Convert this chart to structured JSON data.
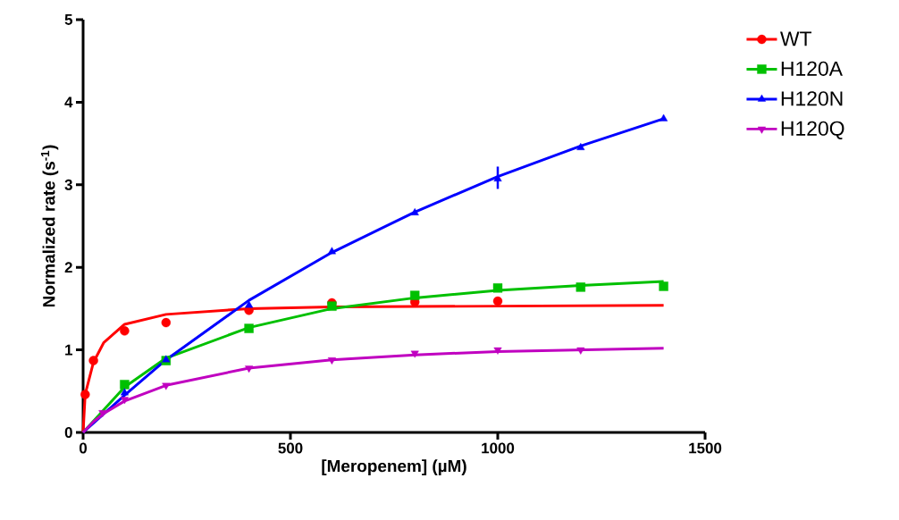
{
  "chart_data": {
    "type": "scatter",
    "xlabel": "[Meropenem] (µM)",
    "ylabel": "Normalized rate (s$^{-1}$)",
    "xlim": [
      0,
      1500
    ],
    "ylim": [
      0,
      5
    ],
    "xticks": [
      0,
      500,
      1000,
      1500
    ],
    "yticks": [
      0,
      1,
      2,
      3,
      4,
      5
    ],
    "grid": false,
    "legend": "right",
    "series": [
      {
        "name": "WT",
        "color": "#ff0000",
        "marker": "circle",
        "x": [
          5,
          25,
          100,
          200,
          400,
          600,
          800,
          1000
        ],
        "values": [
          0.46,
          0.87,
          1.23,
          1.33,
          1.48,
          1.57,
          1.58,
          1.59
        ]
      },
      {
        "name": "H120A",
        "color": "#00c000",
        "marker": "square",
        "x": [
          100,
          200,
          400,
          600,
          800,
          1000,
          1200,
          1400
        ],
        "values": [
          0.58,
          0.87,
          1.26,
          1.53,
          1.66,
          1.75,
          1.76,
          1.77
        ]
      },
      {
        "name": "H120N",
        "color": "#0000ff",
        "marker": "triangle",
        "x": [
          100,
          200,
          400,
          600,
          800,
          1000,
          1200,
          1400
        ],
        "values": [
          0.48,
          0.88,
          1.54,
          2.19,
          2.66,
          3.07,
          3.45,
          3.8
        ],
        "errors": [
          null,
          null,
          null,
          null,
          null,
          [
            2.95,
            3.22
          ],
          null,
          null
        ]
      },
      {
        "name": "H120Q",
        "color": "#c000c0",
        "marker": "triangle-down",
        "x": [
          47,
          100,
          200,
          400,
          600,
          800,
          1000,
          1200
        ],
        "values": [
          0.24,
          0.4,
          0.57,
          0.78,
          0.88,
          0.96,
          1.0,
          1.0
        ]
      },
      {
        "type": "line",
        "color": "#ff0000",
        "marker": "none",
        "x": [
          0,
          5,
          25,
          50,
          100,
          200,
          400,
          600,
          1000,
          1400
        ],
        "values": [
          0,
          0.46,
          0.85,
          1.09,
          1.31,
          1.43,
          1.5,
          1.52,
          1.53,
          1.54
        ]
      },
      {
        "type": "line",
        "color": "#00c000",
        "marker": "none",
        "x": [
          0,
          100,
          200,
          400,
          600,
          800,
          1000,
          1200,
          1400
        ],
        "values": [
          0,
          0.55,
          0.9,
          1.27,
          1.5,
          1.63,
          1.72,
          1.78,
          1.83
        ]
      },
      {
        "type": "line",
        "color": "#0000ff",
        "marker": "none",
        "x": [
          0,
          100,
          200,
          400,
          600,
          800,
          1000,
          1200,
          1400
        ],
        "values": [
          0,
          0.45,
          0.88,
          1.6,
          2.18,
          2.67,
          3.1,
          3.47,
          3.8
        ]
      },
      {
        "type": "line",
        "color": "#c000c0",
        "marker": "none",
        "x": [
          0,
          25,
          50,
          100,
          200,
          400,
          600,
          800,
          1000,
          1200,
          1400
        ],
        "values": [
          0,
          0.13,
          0.23,
          0.38,
          0.57,
          0.78,
          0.88,
          0.94,
          0.98,
          1.0,
          1.02
        ]
      }
    ]
  }
}
